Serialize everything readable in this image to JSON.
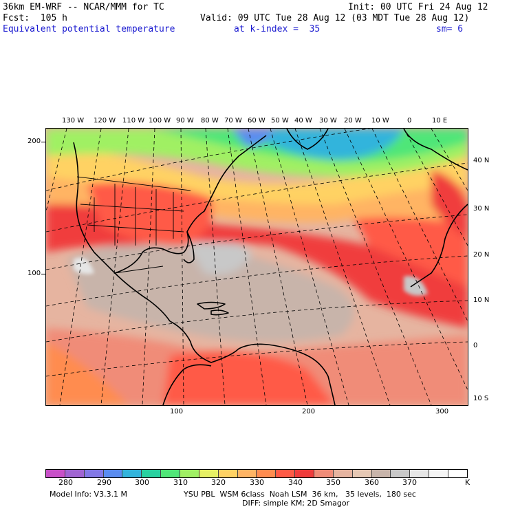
{
  "header": {
    "model": "36km EM-WRF -- NCAR/MMM for TC",
    "init": "Init: 00 UTC Fri 24 Aug 12",
    "fcst": "Fcst:  105 h",
    "valid": "Valid: 09 UTC Tue 28 Aug 12 (03 MDT Tue 28 Aug 12)",
    "field": "Equivalent potential temperature",
    "kindex": "at k-index =  35",
    "sm": "sm= 6"
  },
  "map": {
    "top_lon_labels": [
      "130 W",
      "120 W",
      "110 W",
      "100 W",
      "90 W",
      "80 W",
      "70 W",
      "60 W",
      "50 W",
      "40 W",
      "30 W",
      "20 W",
      "10 W",
      "0",
      "10 E"
    ],
    "right_lat_labels": [
      "40 N",
      "30 N",
      "20 N",
      "10 N",
      "0",
      "10 S"
    ],
    "left_grid_labels": [
      "200",
      "100"
    ],
    "bottom_grid_labels": [
      "100",
      "200",
      "300"
    ]
  },
  "colorbar": {
    "colors": [
      "#c850c8",
      "#a064d2",
      "#8278e6",
      "#5a8cf0",
      "#32b4dc",
      "#28d2a0",
      "#50e678",
      "#a0f064",
      "#e6f064",
      "#ffd264",
      "#ffb464",
      "#ff8c50",
      "#ff5a46",
      "#f03c3c",
      "#f08c78",
      "#e6b4a0",
      "#e6c8b4",
      "#c8b4aa",
      "#c8c8c8",
      "#e6e6e6",
      "#f5f5f5",
      "#ffffff"
    ],
    "labels": [
      "280",
      "290",
      "300",
      "310",
      "320",
      "330",
      "340",
      "350",
      "360",
      "370"
    ],
    "unit": "K"
  },
  "footer": {
    "line1_left": "Model Info: V3.3.1 M",
    "line1_right": "YSU PBL  WSM 6class  Noah LSM  36 km,   35 levels,  180 sec",
    "line2": "DIFF: simple KM; 2D Smagor"
  }
}
